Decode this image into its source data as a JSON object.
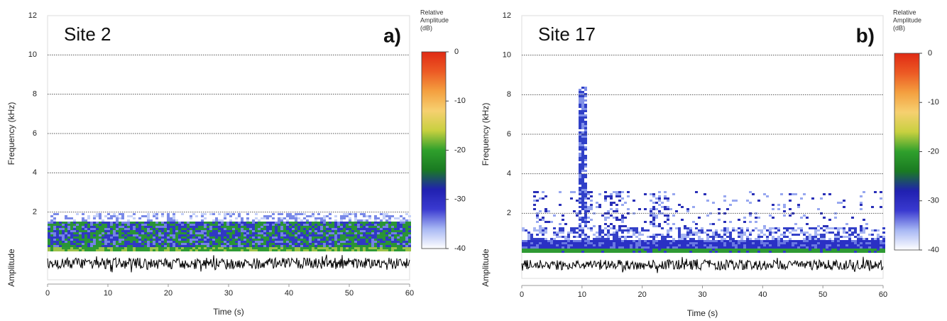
{
  "chart_data": [
    {
      "type": "spectrogram",
      "site": "Site 2",
      "panel_label": "a)",
      "xlabel": "Time (s)",
      "ylabel": "Frequency (kHz)",
      "amplitude_label": "Amplitude",
      "xlim": [
        0,
        60
      ],
      "xticks": [
        0,
        10,
        20,
        30,
        40,
        50,
        60
      ],
      "ylim": [
        0,
        12
      ],
      "yticks": [
        2,
        4,
        6,
        8,
        10,
        12
      ],
      "grid": true,
      "colorbar": {
        "title": [
          "Relative",
          "Amplitude",
          "(dB)"
        ],
        "lim": [
          -40,
          0
        ],
        "ticks": [
          0,
          -10,
          -20,
          -30,
          -40
        ],
        "colors": [
          "#ffffff",
          "#a8b8f4",
          "#3a3ad0",
          "#2020b0",
          "#1a7a22",
          "#2fa02c",
          "#c8d040",
          "#f6d070",
          "#f4a040",
          "#ec5a24",
          "#e02a14"
        ]
      }
    },
    {
      "type": "spectrogram",
      "site": "Site 17",
      "panel_label": "b)",
      "xlabel": "Time (s)",
      "ylabel": "Frequency (kHz)",
      "amplitude_label": "Amplitude",
      "xlim": [
        0,
        60
      ],
      "xticks": [
        0,
        10,
        20,
        30,
        40,
        50,
        60
      ],
      "ylim": [
        0,
        12
      ],
      "yticks": [
        2,
        4,
        6,
        8,
        10,
        12
      ],
      "grid": true,
      "colorbar": {
        "title": [
          "Relative",
          "Amplitude",
          "(dB)"
        ],
        "lim": [
          -40,
          0
        ],
        "ticks": [
          0,
          -10,
          -20,
          -30,
          -40
        ],
        "colors": [
          "#ffffff",
          "#a8b8f4",
          "#3a3ad0",
          "#2020b0",
          "#1a7a22",
          "#2fa02c",
          "#c8d040",
          "#f6d070",
          "#f4a040",
          "#ec5a24",
          "#e02a14"
        ]
      }
    }
  ]
}
